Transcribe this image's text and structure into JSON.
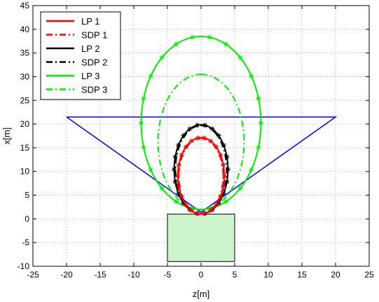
{
  "chart_data": {
    "type": "line",
    "xlabel": "z[m]",
    "ylabel": "x[m]",
    "xlim": [
      -25,
      25
    ],
    "ylim": [
      -10,
      45
    ],
    "xticks": [
      -25,
      -20,
      -15,
      -10,
      -5,
      0,
      5,
      10,
      15,
      20,
      25
    ],
    "yticks": [
      -10,
      -5,
      0,
      5,
      10,
      15,
      20,
      25,
      30,
      35,
      40,
      45
    ],
    "grid": true,
    "legend_position": "top-left",
    "series": [
      {
        "name": "LP 1",
        "color": "#ff0000",
        "style": "solid",
        "marker": "asterisk",
        "shape": "ellipse",
        "center": [
          0,
          9.1
        ],
        "semi_axes_z_x": [
          3.45,
          8.05
        ]
      },
      {
        "name": "SDP 1",
        "color": "#ff0000",
        "style": "dashdot",
        "marker": "none",
        "shape": "ellipse",
        "center": [
          0,
          9.0
        ],
        "semi_axes_z_x": [
          3.3,
          8.0
        ]
      },
      {
        "name": "LP 2",
        "color": "#000000",
        "style": "solid",
        "marker": "asterisk",
        "shape": "ellipse",
        "center": [
          0,
          10.45
        ],
        "semi_axes_z_x": [
          4.0,
          9.4
        ]
      },
      {
        "name": "SDP 2",
        "color": "#000000",
        "style": "dashdot",
        "marker": "none",
        "shape": "ellipse",
        "center": [
          0,
          10.4
        ],
        "semi_axes_z_x": [
          3.8,
          9.3
        ]
      },
      {
        "name": "LP 3",
        "color": "#00ee00",
        "style": "solid",
        "marker": "asterisk",
        "shape": "ellipse",
        "center": [
          0,
          20.25
        ],
        "semi_axes_z_x": [
          8.9,
          18.25
        ]
      },
      {
        "name": "SDP 3",
        "color": "#00ee00",
        "style": "dashdot",
        "marker": "none",
        "shape": "ellipse",
        "center": [
          0,
          16.25
        ],
        "semi_axes_z_x": [
          6.4,
          14.25
        ]
      }
    ],
    "annotations": [
      {
        "type": "polyline",
        "color": "#0000ff",
        "points": [
          [
            -20,
            21.5
          ],
          [
            20,
            21.5
          ],
          [
            0,
            1.4
          ],
          [
            -20,
            21.5
          ]
        ]
      },
      {
        "type": "rect",
        "fill": "#ccf5cc",
        "stroke": "#000000",
        "z": [
          -5,
          5
        ],
        "x": [
          -9,
          1
        ]
      }
    ]
  }
}
